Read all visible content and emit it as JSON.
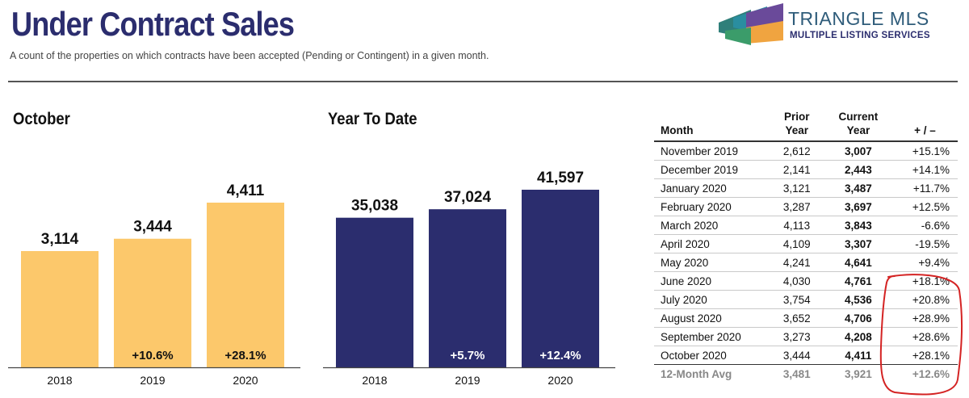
{
  "header": {
    "title": "Under Contract Sales",
    "subtitle": "A count of the properties on which contracts have been accepted (Pending or Contingent) in a given month."
  },
  "logo": {
    "line1": "TRIANGLE MLS",
    "line2": "MULTIPLE LISTING SERVICES"
  },
  "colors": {
    "title": "#2b2d6e",
    "october_bars": "#fcc86b",
    "ytd_bars": "#2b2d6e",
    "annotation": "#d42323"
  },
  "chart_data": [
    {
      "type": "bar",
      "title": "October",
      "categories": [
        "2018",
        "2019",
        "2020"
      ],
      "values": [
        3114,
        3444,
        4411
      ],
      "value_labels": [
        "3,114",
        "3,444",
        "4,411"
      ],
      "change_labels": [
        "",
        "+10.6%",
        "+28.1%"
      ],
      "color": "#fcc86b"
    },
    {
      "type": "bar",
      "title": "Year To Date",
      "categories": [
        "2018",
        "2019",
        "2020"
      ],
      "values": [
        35038,
        37024,
        41597
      ],
      "value_labels": [
        "35,038",
        "37,024",
        "41,597"
      ],
      "change_labels": [
        "",
        "+5.7%",
        "+12.4%"
      ],
      "color": "#2b2d6e"
    },
    {
      "type": "table",
      "columns": [
        "Month",
        "Prior Year",
        "Current Year",
        "+ / –"
      ],
      "rows": [
        {
          "month": "November 2019",
          "prior": "2,612",
          "current": "3,007",
          "change": "+15.1%"
        },
        {
          "month": "December 2019",
          "prior": "2,141",
          "current": "2,443",
          "change": "+14.1%"
        },
        {
          "month": "January 2020",
          "prior": "3,121",
          "current": "3,487",
          "change": "+11.7%"
        },
        {
          "month": "February 2020",
          "prior": "3,287",
          "current": "3,697",
          "change": "+12.5%"
        },
        {
          "month": "March 2020",
          "prior": "4,113",
          "current": "3,843",
          "change": "-6.6%"
        },
        {
          "month": "April 2020",
          "prior": "4,109",
          "current": "3,307",
          "change": "-19.5%"
        },
        {
          "month": "May 2020",
          "prior": "4,241",
          "current": "4,641",
          "change": "+9.4%"
        },
        {
          "month": "June 2020",
          "prior": "4,030",
          "current": "4,761",
          "change": "+18.1%"
        },
        {
          "month": "July 2020",
          "prior": "3,754",
          "current": "4,536",
          "change": "+20.8%"
        },
        {
          "month": "August 2020",
          "prior": "3,652",
          "current": "4,706",
          "change": "+28.9%"
        },
        {
          "month": "September 2020",
          "prior": "3,273",
          "current": "4,208",
          "change": "+28.6%"
        },
        {
          "month": "October 2020",
          "prior": "3,444",
          "current": "4,411",
          "change": "+28.1%"
        }
      ],
      "summary": {
        "month": "12-Month Avg",
        "prior": "3,481",
        "current": "3,921",
        "change": "+12.6%"
      }
    }
  ]
}
